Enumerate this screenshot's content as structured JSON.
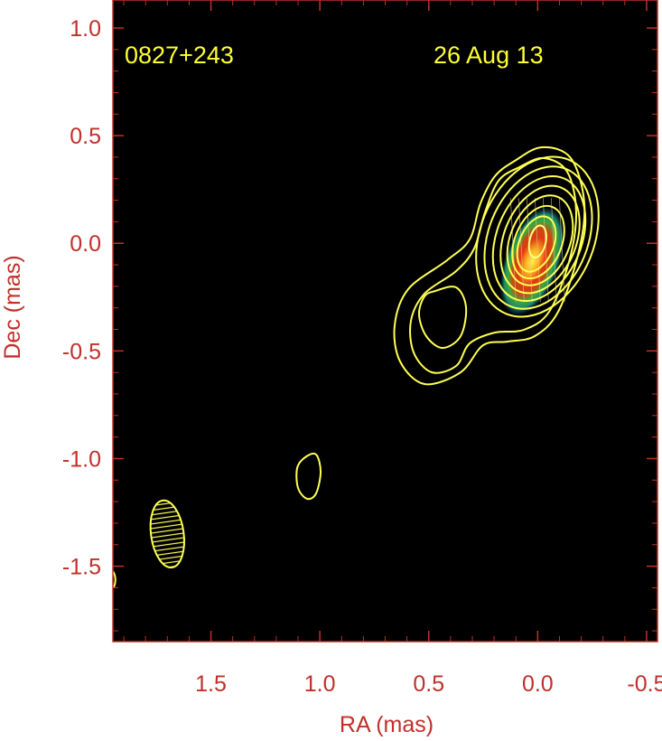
{
  "chart_data": {
    "type": "contour",
    "source_name": "0827+243",
    "epoch": "26 Aug 13",
    "xlabel": "RA (mas)",
    "ylabel": "Dec (mas)",
    "xlim": [
      1.95,
      -0.55
    ],
    "ylim": [
      -1.85,
      1.13
    ],
    "x_ticks": [
      1.5,
      1.0,
      0.5,
      0.0,
      -0.5
    ],
    "x_tick_labels": [
      "1.5",
      "1.0",
      "0.5",
      "0.0",
      "-0.5"
    ],
    "y_ticks": [
      1.0,
      0.5,
      0.0,
      -0.5,
      -1.0,
      -1.5
    ],
    "y_tick_labels": [
      "1.0",
      "0.5",
      "0.0",
      "-0.5",
      "-1.0",
      "-1.5"
    ],
    "core": {
      "ra": 0.0,
      "dec": 0.0
    },
    "beam": {
      "ra": 1.7,
      "dec": -1.35,
      "major_mas": 0.31,
      "minor_mas": 0.15,
      "pa_deg": -8
    },
    "colors": {
      "background": "#000000",
      "axis_text": "#c0302a",
      "contour": "#ffff55",
      "annotation": "#ffff33"
    }
  }
}
